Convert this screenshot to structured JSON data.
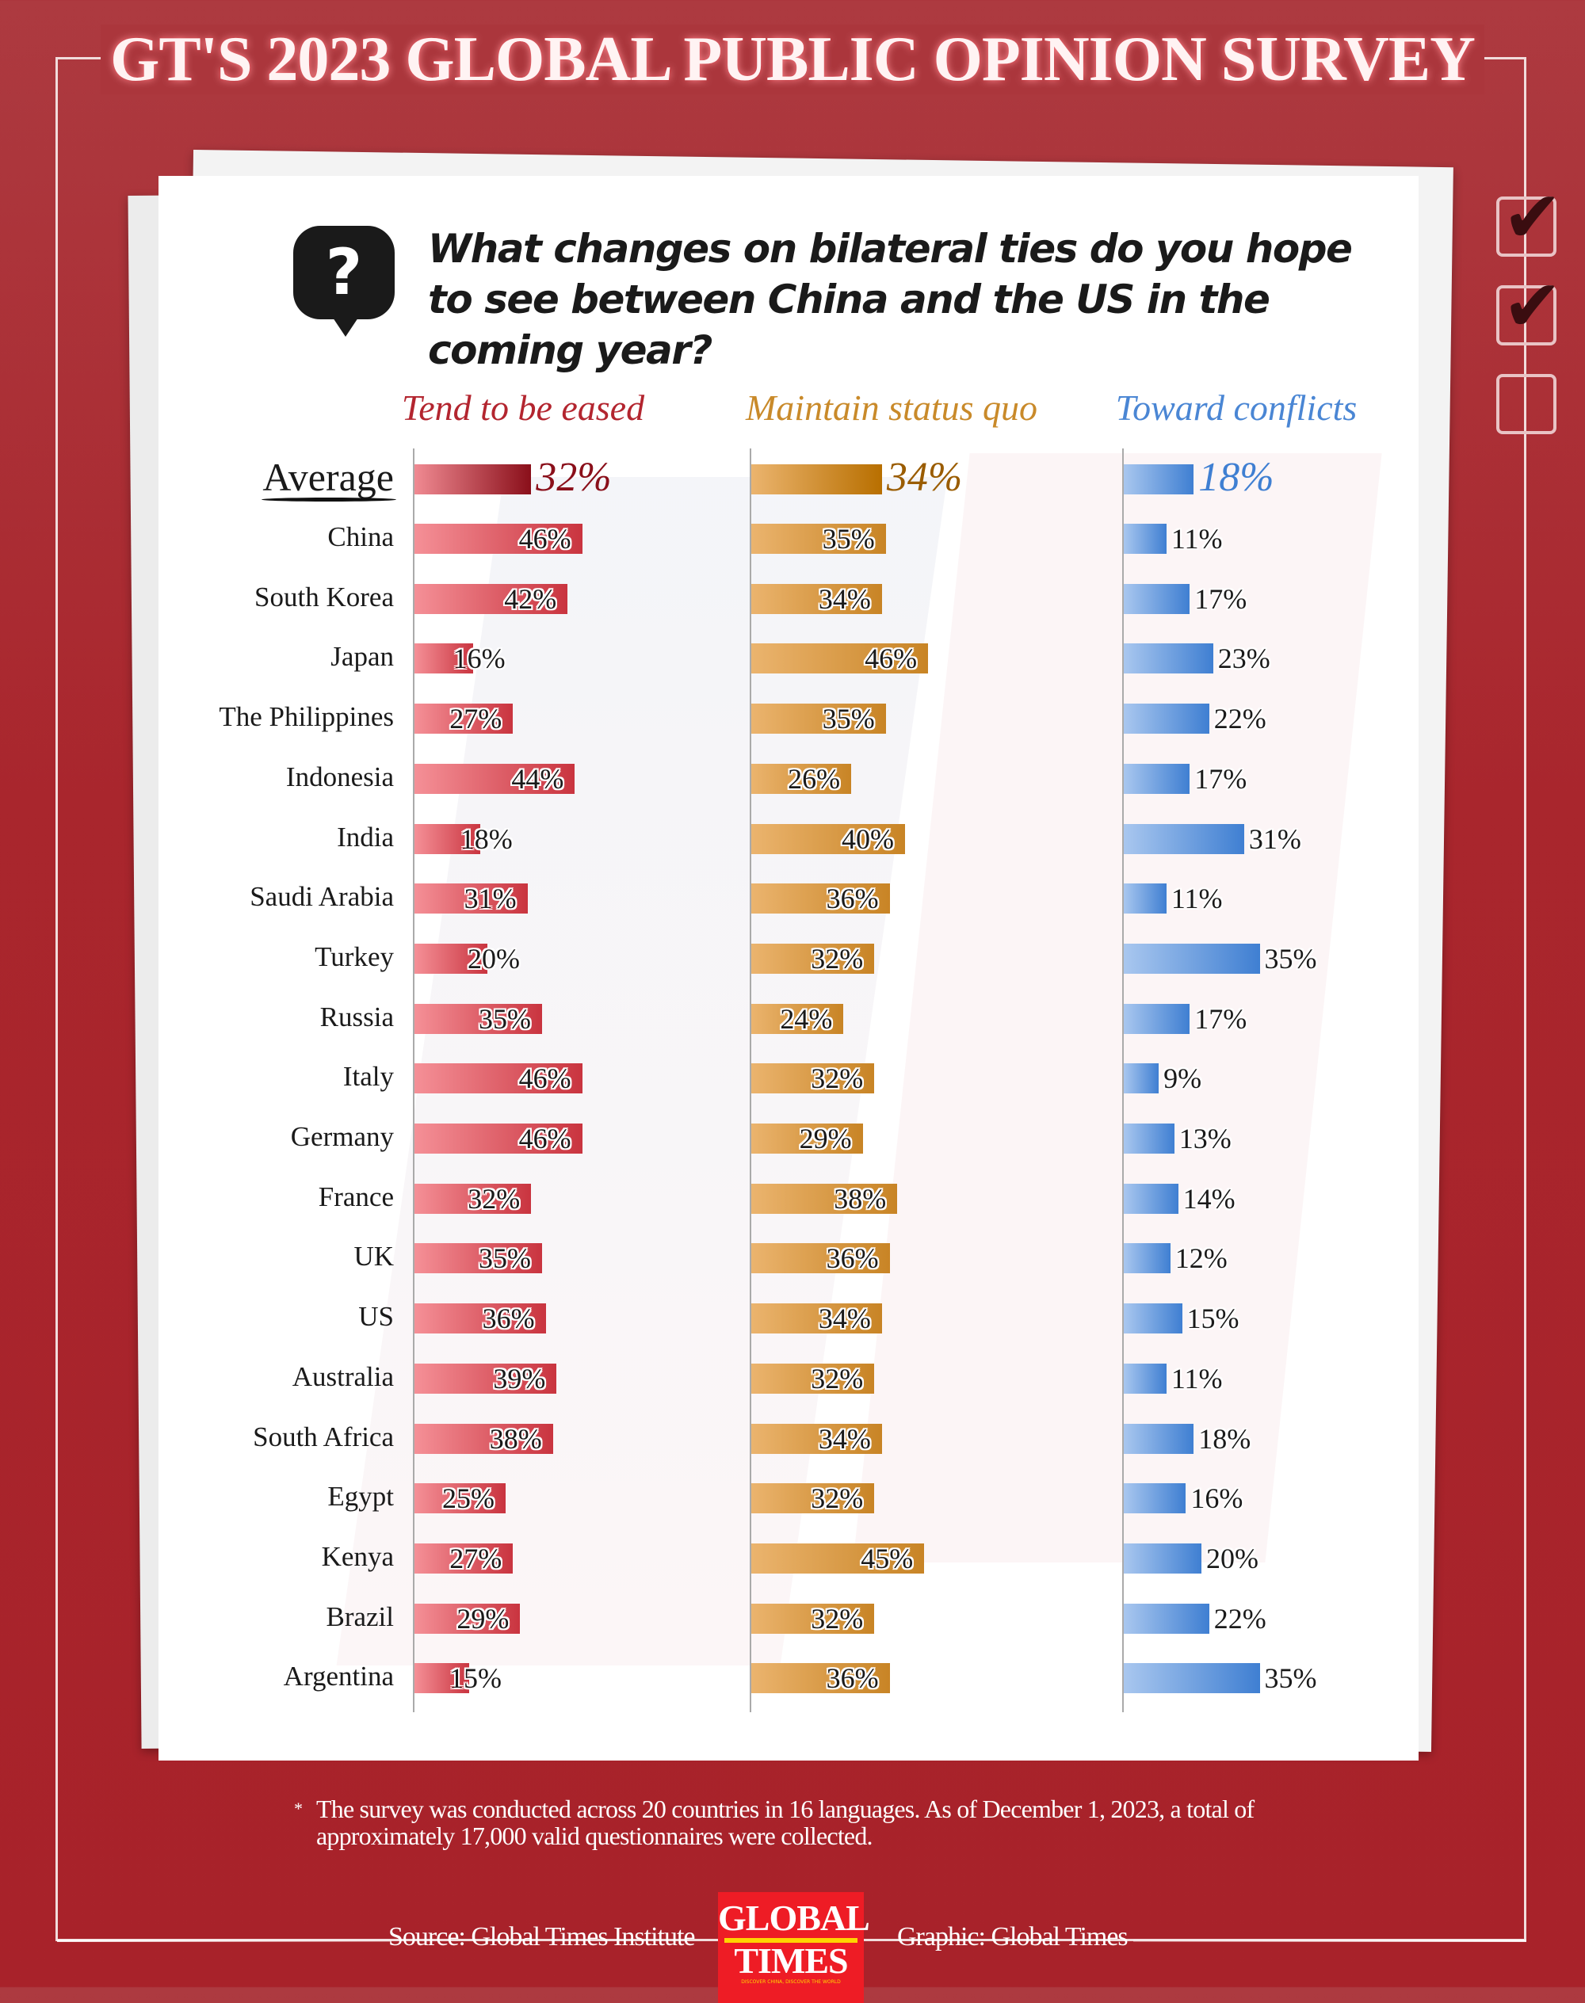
{
  "title": "GT'S 2023 GLOBAL PUBLIC OPINION SURVEY",
  "question": "What changes on bilateral ties do you hope to see between China and the US in the coming year?",
  "colors": {
    "eased": "#b3252f",
    "status_quo": "#c98a2a",
    "conflicts": "#4a86d4"
  },
  "chart_data": {
    "type": "bar",
    "title": "What changes on bilateral ties do you hope to see between China and the US in the coming year?",
    "categories": [
      "Average",
      "China",
      "South Korea",
      "Japan",
      "The Philippines",
      "Indonesia",
      "India",
      "Saudi Arabia",
      "Turkey",
      "Russia",
      "Italy",
      "Germany",
      "France",
      "UK",
      "US",
      "Australia",
      "South Africa",
      "Egypt",
      "Kenya",
      "Brazil",
      "Argentina"
    ],
    "series": [
      {
        "name": "Tend to be eased",
        "values": [
          32,
          46,
          42,
          16,
          27,
          44,
          18,
          31,
          20,
          35,
          46,
          46,
          32,
          35,
          36,
          39,
          38,
          25,
          27,
          29,
          15
        ]
      },
      {
        "name": "Maintain status quo",
        "values": [
          34,
          35,
          34,
          46,
          35,
          26,
          40,
          36,
          32,
          24,
          32,
          29,
          38,
          36,
          34,
          32,
          34,
          32,
          45,
          32,
          36
        ]
      },
      {
        "name": "Toward conflicts",
        "values": [
          18,
          11,
          17,
          23,
          22,
          17,
          31,
          11,
          35,
          17,
          9,
          13,
          14,
          12,
          15,
          11,
          18,
          16,
          20,
          22,
          35
        ]
      }
    ],
    "unit": "%",
    "legend": "top"
  },
  "footnote_marker": "*",
  "footnote": "The survey was conducted across 20 countries in 16 languages. As of  December 1, 2023, a total of approximately 17,000 valid questionnaires were collected.",
  "source": "Source: Global Times Institute",
  "graphic": "Graphic: Global Times",
  "logo": {
    "line1": "GLOBAL",
    "line2": "TIMES",
    "tagline": "DISCOVER CHINA, DISCOVER THE WORLD"
  },
  "icons": {
    "question": "question-bubble-icon",
    "check": "checkmark-icon"
  },
  "question_mark": "?",
  "check_glyph": "✔"
}
